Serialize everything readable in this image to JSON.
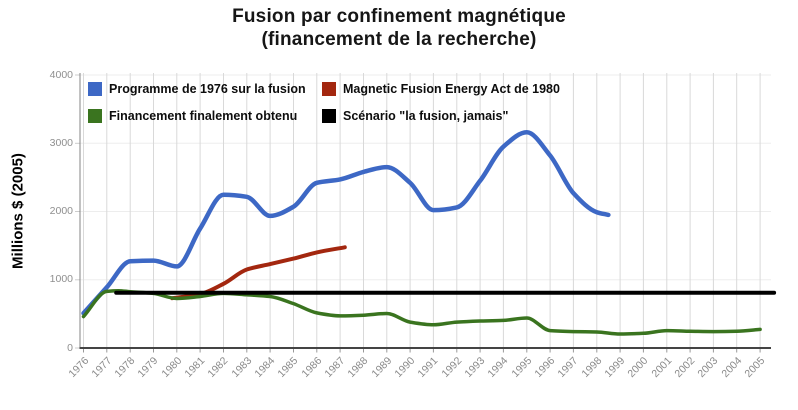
{
  "title": {
    "line1": "Fusion par confinement magnétique",
    "line2": "(financement de la recherche)"
  },
  "chart_data": {
    "type": "line",
    "title": "Fusion par confinement magnétique (financement de la recherche)",
    "xlabel": "",
    "ylabel": "Millions $ (2005)",
    "ylim": [
      0,
      4000
    ],
    "yticks": [
      0,
      1000,
      2000,
      3000,
      4000
    ],
    "xlim": [
      1976,
      2005
    ],
    "xticks": [
      "1976",
      "1977",
      "1978",
      "1979",
      "1980",
      "1981",
      "1982",
      "1983",
      "1984",
      "1985",
      "1986",
      "1987",
      "1988",
      "1989",
      "1990",
      "1991",
      "1992",
      "1993",
      "1994",
      "1995",
      "1996",
      "1997",
      "1998",
      "1999",
      "2000",
      "2001",
      "2002",
      "2003",
      "2004",
      "2005"
    ],
    "grid": "vertical yearly gridlines, faint horizontal gridlines",
    "legend_position": "top-left inside plot, 2 columns",
    "series": [
      {
        "name": "Programme de 1976 sur la fusion",
        "color": "#3D68C5",
        "points": [
          [
            1976,
            510
          ],
          [
            1977,
            890
          ],
          [
            1978,
            1270
          ],
          [
            1979,
            1280
          ],
          [
            1980,
            1195
          ],
          [
            1981,
            1750
          ],
          [
            1982,
            2245
          ],
          [
            1983,
            2215
          ],
          [
            1984,
            1935
          ],
          [
            1985,
            2070
          ],
          [
            1986,
            2420
          ],
          [
            1987,
            2470
          ],
          [
            1988,
            2580
          ],
          [
            1989,
            2650
          ],
          [
            1990,
            2420
          ],
          [
            1991,
            2020
          ],
          [
            1992,
            2060
          ],
          [
            1993,
            2450
          ],
          [
            1994,
            2950
          ],
          [
            1995,
            3160
          ],
          [
            1996,
            2820
          ],
          [
            1997,
            2270
          ],
          [
            1998,
            1990
          ],
          [
            1998.5,
            1950
          ]
        ]
      },
      {
        "name": "Magnetic Fusion Energy Act de 1980",
        "color": "#A3270F",
        "points": [
          [
            1979.8,
            730
          ],
          [
            1981,
            790
          ],
          [
            1982,
            940
          ],
          [
            1983,
            1150
          ],
          [
            1984,
            1230
          ],
          [
            1985,
            1310
          ],
          [
            1986,
            1400
          ],
          [
            1987.2,
            1475
          ]
        ]
      },
      {
        "name": "Financement finalement obtenu",
        "color": "#3A741F",
        "points": [
          [
            1976,
            460
          ],
          [
            1977,
            830
          ],
          [
            1977.5,
            840
          ],
          [
            1978,
            825
          ],
          [
            1979,
            800
          ],
          [
            1980,
            725
          ],
          [
            1981,
            755
          ],
          [
            1982,
            800
          ],
          [
            1983,
            780
          ],
          [
            1984,
            755
          ],
          [
            1985,
            650
          ],
          [
            1986,
            515
          ],
          [
            1987,
            470
          ],
          [
            1988,
            480
          ],
          [
            1989,
            505
          ],
          [
            1990,
            380
          ],
          [
            1991,
            340
          ],
          [
            1992,
            380
          ],
          [
            1993,
            395
          ],
          [
            1994,
            405
          ],
          [
            1995,
            440
          ],
          [
            1996,
            255
          ],
          [
            1997,
            240
          ],
          [
            1998,
            235
          ],
          [
            1999,
            205
          ],
          [
            2000,
            215
          ],
          [
            2001,
            255
          ],
          [
            2002,
            245
          ],
          [
            2003,
            240
          ],
          [
            2004,
            245
          ],
          [
            2005,
            272
          ]
        ]
      },
      {
        "name": "Scénario \"la fusion, jamais\"",
        "color": "#000000",
        "points": [
          [
            1977.4,
            810
          ],
          [
            2005.6,
            810
          ]
        ]
      }
    ]
  }
}
